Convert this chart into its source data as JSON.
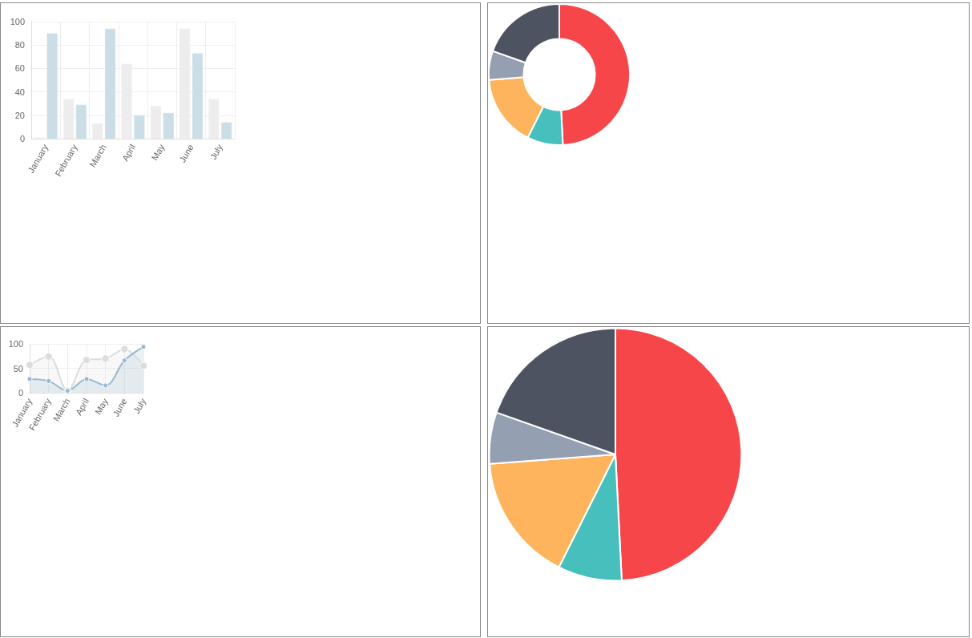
{
  "chart_data": [
    {
      "type": "bar",
      "categories": [
        "January",
        "February",
        "March",
        "April",
        "May",
        "June",
        "July"
      ],
      "series": [
        {
          "color": "#ededed",
          "values": [
            1,
            34,
            13,
            64,
            28,
            94,
            34
          ]
        },
        {
          "color": "#cbdde6",
          "values": [
            90,
            29,
            94,
            20,
            22,
            73,
            14
          ]
        }
      ],
      "ylim": [
        0,
        100
      ],
      "yticks": [
        0,
        20,
        40,
        60,
        80,
        100
      ],
      "grid": true
    },
    {
      "type": "donut",
      "categories": [
        null,
        null,
        null,
        null,
        null
      ],
      "values": [
        49.2,
        8.2,
        16.4,
        6.6,
        19.6
      ],
      "colors": [
        "#f7464a",
        "#46bfbd",
        "#fdb45c",
        "#949fb1",
        "#4d5360"
      ]
    },
    {
      "type": "area",
      "categories": [
        "January",
        "February",
        "March",
        "April",
        "May",
        "June",
        "July"
      ],
      "series": [
        {
          "color": "#dcdcdc",
          "values": [
            57,
            74,
            4,
            67,
            70,
            89,
            55
          ]
        },
        {
          "color": "#97bbcd",
          "values": [
            28,
            24,
            4,
            28,
            15,
            66,
            94
          ]
        }
      ],
      "ylim": [
        0,
        100
      ],
      "yticks": [
        0,
        50,
        100
      ],
      "grid": true,
      "marker": "circle"
    },
    {
      "type": "pie",
      "categories": [
        null,
        null,
        null,
        null,
        null
      ],
      "values": [
        49.2,
        8.2,
        16.4,
        6.6,
        19.6
      ],
      "colors": [
        "#f7464a",
        "#46bfbd",
        "#fdb45c",
        "#949fb1",
        "#4d5360"
      ]
    }
  ]
}
